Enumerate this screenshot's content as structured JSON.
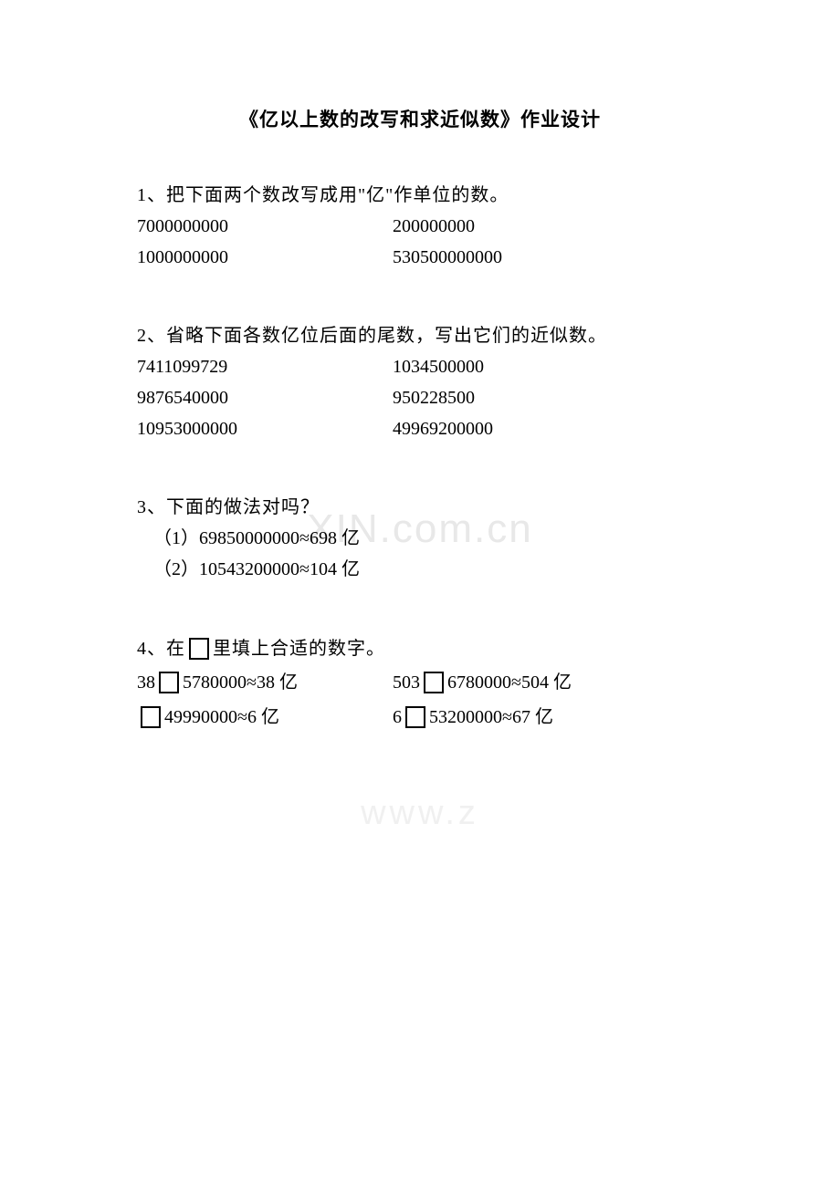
{
  "title": "《亿以上数的改写和求近似数》作业设计",
  "watermark1": "XIN.com.cn",
  "watermark2": "www.z",
  "q1": {
    "title": "1、把下面两个数改写成用\"亿\"作单位的数。",
    "rows": [
      {
        "left": "7000000000",
        "right": "200000000"
      },
      {
        "left": "1000000000",
        "right": "530500000000"
      }
    ]
  },
  "q2": {
    "title": "2、省略下面各数亿位后面的尾数，写出它们的近似数。",
    "rows": [
      {
        "left": "7411099729",
        "right": "1034500000"
      },
      {
        "left": "9876540000",
        "right": "950228500"
      },
      {
        "left": "10953000000",
        "right": "49969200000"
      }
    ]
  },
  "q3": {
    "title": "3、下面的做法对吗？",
    "items": [
      "（1）69850000000≈698 亿",
      "（2）10543200000≈104 亿"
    ]
  },
  "q4": {
    "title_pre": "4、在",
    "title_post": "里填上合适的数字。",
    "rows": [
      {
        "l_pre": "38",
        "l_post": "5780000≈38 亿",
        "r_pre": "503",
        "r_post": "6780000≈504 亿"
      },
      {
        "l_pre": "",
        "l_post": "49990000≈6 亿",
        "r_pre": "6",
        "r_post": "53200000≈67 亿"
      }
    ]
  }
}
